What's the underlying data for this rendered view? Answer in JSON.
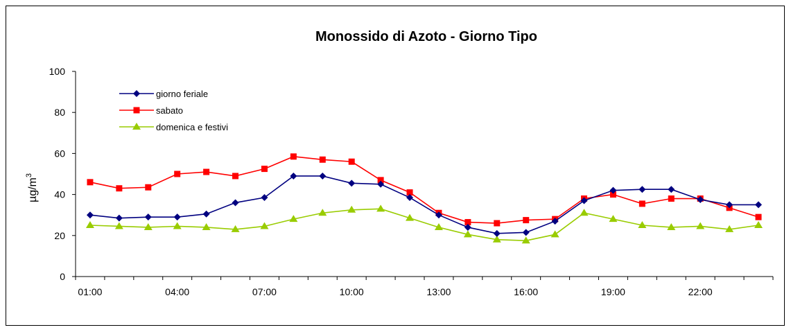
{
  "chart_data": {
    "type": "line",
    "title": "Monossido di Azoto -  Giorno Tipo",
    "xlabel": "",
    "ylabel": "µg/m",
    "ylabel_sup": "3",
    "ylim": [
      0,
      100
    ],
    "yticks": [
      0,
      20,
      40,
      60,
      80,
      100
    ],
    "grid": false,
    "legend_position": "top-left",
    "categories": [
      "01:00",
      "02:00",
      "03:00",
      "04:00",
      "05:00",
      "06:00",
      "07:00",
      "08:00",
      "09:00",
      "10:00",
      "11:00",
      "12:00",
      "13:00",
      "14:00",
      "15:00",
      "16:00",
      "17:00",
      "18:00",
      "19:00",
      "20:00",
      "21:00",
      "22:00",
      "23:00",
      "24:00"
    ],
    "tick_labels": [
      "01:00",
      "04:00",
      "07:00",
      "10:00",
      "13:00",
      "16:00",
      "19:00",
      "22:00"
    ],
    "series": [
      {
        "name": "giorno feriale",
        "color": "#000080",
        "marker": "diamond",
        "values": [
          30,
          28.5,
          29,
          29,
          30.5,
          36,
          38.5,
          49,
          49,
          45.5,
          45,
          38.5,
          30,
          24,
          21,
          21.5,
          27,
          37,
          42,
          42.5,
          42.5,
          37.5,
          35,
          35
        ]
      },
      {
        "name": "sabato",
        "color": "#ff0000",
        "marker": "square",
        "values": [
          46,
          43,
          43.5,
          50,
          51,
          49,
          52.5,
          58.5,
          57,
          56,
          47,
          41,
          31,
          26.5,
          26,
          27.5,
          28,
          38,
          40,
          35.5,
          38,
          38,
          33.5,
          29
        ]
      },
      {
        "name": "domenica e festivi",
        "color": "#99cc00",
        "marker": "triangle",
        "values": [
          25,
          24.5,
          24,
          24.5,
          24,
          23,
          24.5,
          28,
          31,
          32.5,
          33,
          28.5,
          24,
          20.5,
          18,
          17.5,
          20.5,
          31,
          28,
          25,
          24,
          24.5,
          23,
          25
        ]
      }
    ]
  }
}
